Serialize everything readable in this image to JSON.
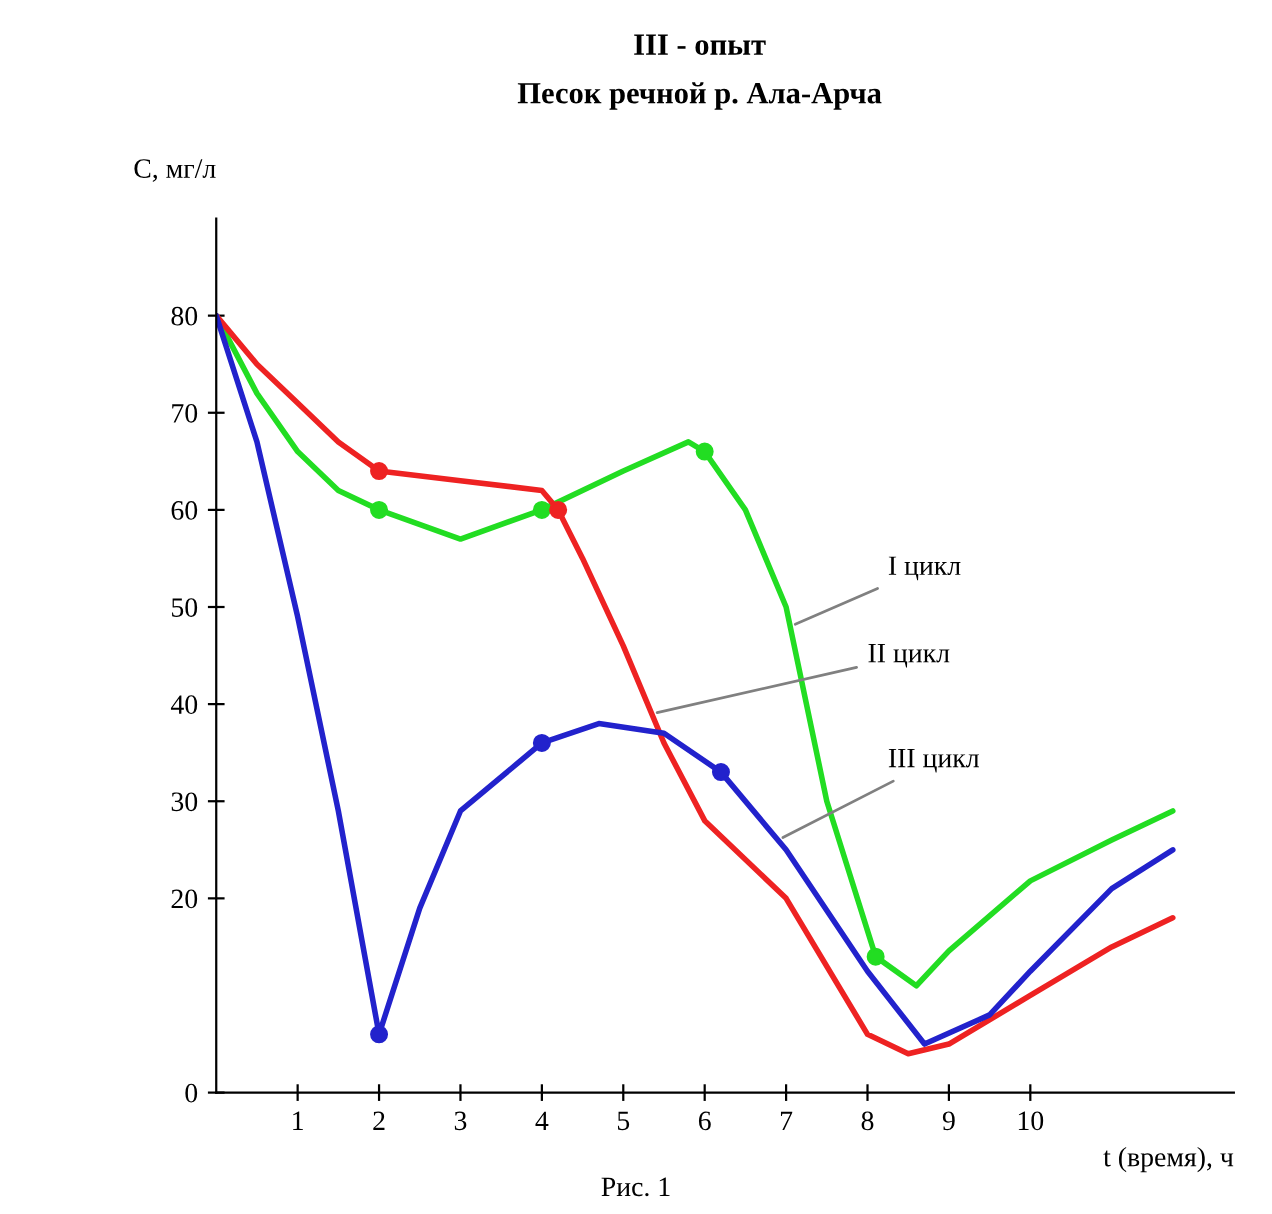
{
  "chart_data": {
    "type": "line",
    "title": "III - опыт",
    "subtitle": "Песок речной р. Ала-Арча",
    "xlabel": "t (время), ч",
    "ylabel": "C, мг/л",
    "xlim": [
      0,
      12.5
    ],
    "xticks": [
      1,
      2,
      3,
      4,
      5,
      6,
      7,
      8,
      9,
      10
    ],
    "ylim": [
      0,
      90
    ],
    "yticks": [
      0,
      20,
      30,
      40,
      50,
      60,
      70,
      80
    ],
    "grid": false,
    "legend": false,
    "series": [
      {
        "color": "#22dd22",
        "x": [
          0,
          0.5,
          1,
          1.5,
          2,
          3,
          4,
          5,
          5.8,
          6,
          6.5,
          7,
          7.5,
          8.1,
          8.6,
          9,
          10,
          11,
          11.75
        ],
        "values": [
          80,
          72,
          66,
          62,
          60,
          57,
          60,
          64,
          67,
          66,
          60,
          50,
          30,
          14,
          11,
          14.6,
          21.8,
          26,
          29
        ]
      },
      {
        "color": "#ee2222",
        "x": [
          0,
          0.5,
          1,
          1.5,
          2,
          3,
          4,
          4.2,
          4.5,
          5,
          5.5,
          6,
          7,
          8,
          8.5,
          9,
          10,
          11,
          11.75
        ],
        "values": [
          80,
          75,
          71,
          67,
          64,
          63,
          62,
          60,
          55,
          46,
          36,
          28,
          20,
          6,
          4,
          5,
          10,
          15,
          18
        ]
      },
      {
        "color": "#2222cc",
        "x": [
          0,
          0.5,
          1,
          1.5,
          2,
          2.5,
          3,
          4,
          4.7,
          5.5,
          6.2,
          7,
          8,
          8.7,
          9.5,
          10,
          11,
          11.75
        ],
        "values": [
          80,
          67,
          49,
          29,
          6,
          19,
          29,
          36,
          38,
          37,
          33,
          25,
          12.5,
          5,
          8,
          12.5,
          21,
          25
        ]
      },
      {
        "type": "scatter",
        "color": "#22dd22",
        "x": [
          2,
          4,
          6,
          8.1
        ],
        "values": [
          60,
          60,
          66,
          14
        ]
      },
      {
        "type": "scatter",
        "color": "#ee2222",
        "x": [
          2,
          4.2
        ],
        "values": [
          64,
          60
        ]
      },
      {
        "type": "scatter",
        "color": "#2222cc",
        "x": [
          2,
          4,
          6.2
        ],
        "values": [
          6,
          36,
          33
        ]
      }
    ],
    "annotations": [
      {
        "text": "I цикл",
        "x": 7.05,
        "y": 48
      },
      {
        "text": "II цикл",
        "x": 5.35,
        "y": 39
      },
      {
        "text": "III цикл",
        "x": 6.9,
        "y": 26
      },
      "Рис. 1"
    ]
  }
}
